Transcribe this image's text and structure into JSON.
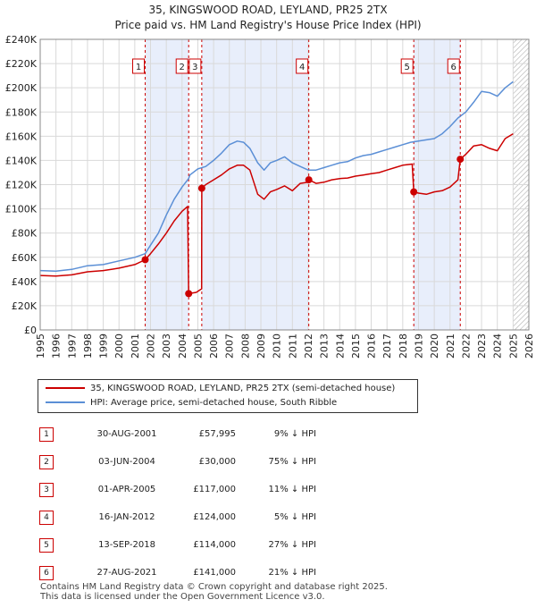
{
  "title_line1": "35, KINGSWOOD ROAD, LEYLAND, PR25 2TX",
  "title_line2": "Price paid vs. HM Land Registry's House Price Index (HPI)",
  "colors": {
    "property": "#cc0000",
    "hpi": "#5b8fd6",
    "shade": "#e8eefb",
    "grid": "#d9d9d9"
  },
  "chart_data": {
    "type": "line",
    "xlim": [
      1995,
      2026
    ],
    "ylim": [
      0,
      240000
    ],
    "y_ticks": [
      0,
      20000,
      40000,
      60000,
      80000,
      100000,
      120000,
      140000,
      160000,
      180000,
      200000,
      220000,
      240000
    ],
    "y_tick_labels": [
      "£0",
      "£20K",
      "£40K",
      "£60K",
      "£80K",
      "£100K",
      "£120K",
      "£140K",
      "£160K",
      "£180K",
      "£200K",
      "£220K",
      "£240K"
    ],
    "x_tick_labels": [
      "1995",
      "1996",
      "1997",
      "1998",
      "1999",
      "2000",
      "2001",
      "2002",
      "2003",
      "2004",
      "2005",
      "2006",
      "2007",
      "2008",
      "2009",
      "2010",
      "2011",
      "2012",
      "2013",
      "2014",
      "2015",
      "2016",
      "2017",
      "2018",
      "2019",
      "2020",
      "2021",
      "2022",
      "2023",
      "2024",
      "2025",
      "2026"
    ],
    "shaded_periods": [
      [
        2001.66,
        2004.42
      ],
      [
        2005.25,
        2012.04
      ],
      [
        2018.7,
        2021.65
      ]
    ],
    "future_hatch_from": 2025.0,
    "series": [
      {
        "name": "HPI: Average price, semi-detached house, South Ribble",
        "x": [
          1995.0,
          1996.0,
          1997.0,
          1998.0,
          1999.0,
          2000.0,
          2001.0,
          2001.66,
          2002.0,
          2002.5,
          2003.0,
          2003.5,
          2004.0,
          2004.42,
          2004.5,
          2005.0,
          2005.5,
          2006.0,
          2006.5,
          2007.0,
          2007.5,
          2007.9,
          2008.3,
          2008.8,
          2009.2,
          2009.6,
          2010.0,
          2010.5,
          2011.0,
          2011.5,
          2012.0,
          2012.5,
          2013.0,
          2013.5,
          2014.0,
          2014.5,
          2015.0,
          2015.5,
          2016.0,
          2016.5,
          2017.0,
          2017.5,
          2018.0,
          2018.5,
          2019.0,
          2019.5,
          2020.0,
          2020.5,
          2021.0,
          2021.5,
          2022.0,
          2022.5,
          2023.0,
          2023.5,
          2024.0,
          2024.5,
          2025.0
        ],
        "values": [
          49000,
          48500,
          50000,
          53000,
          54000,
          57000,
          60000,
          63000,
          70000,
          80000,
          95000,
          108000,
          118000,
          125000,
          128000,
          133000,
          135000,
          140000,
          146000,
          153000,
          156000,
          155000,
          150000,
          138000,
          132000,
          138000,
          140000,
          143000,
          138000,
          135000,
          132000,
          132000,
          134000,
          136000,
          138000,
          139000,
          142000,
          144000,
          145000,
          147000,
          149000,
          151000,
          153000,
          155000,
          156000,
          157000,
          158000,
          162000,
          168000,
          175000,
          180000,
          188000,
          197000,
          196000,
          193000,
          200000,
          205000
        ]
      },
      {
        "name": "35, KINGSWOOD ROAD, LEYLAND, PR25 2TX (semi-detached house)",
        "x": [
          1995.0,
          1996.0,
          1997.0,
          1998.0,
          1999.0,
          2000.0,
          2001.0,
          2001.66,
          2002.0,
          2002.5,
          2003.0,
          2003.5,
          2004.0,
          2004.35,
          2004.42,
          2004.9,
          2005.24,
          2005.25,
          2005.5,
          2006.0,
          2006.5,
          2007.0,
          2007.5,
          2007.9,
          2008.3,
          2008.8,
          2009.2,
          2009.6,
          2010.0,
          2010.5,
          2011.0,
          2011.5,
          2012.0,
          2012.04,
          2012.5,
          2013.0,
          2013.5,
          2014.0,
          2014.5,
          2015.0,
          2015.5,
          2016.0,
          2016.5,
          2017.0,
          2017.5,
          2018.0,
          2018.6,
          2018.7,
          2019.0,
          2019.5,
          2020.0,
          2020.5,
          2021.0,
          2021.5,
          2021.65,
          2022.0,
          2022.5,
          2023.0,
          2023.5,
          2024.0,
          2024.5,
          2025.0
        ],
        "values": [
          45000,
          44500,
          45500,
          48000,
          49000,
          51000,
          54000,
          57995,
          63000,
          71000,
          80000,
          90000,
          98000,
          102000,
          30000,
          31000,
          34000,
          117000,
          120000,
          124000,
          128000,
          133000,
          136000,
          136000,
          132000,
          112000,
          108000,
          114000,
          116000,
          119000,
          115000,
          121000,
          122000,
          124000,
          121000,
          122000,
          124000,
          125000,
          125500,
          127000,
          128000,
          129000,
          130000,
          132000,
          134000,
          136000,
          137000,
          114000,
          113000,
          112000,
          114000,
          115000,
          118000,
          124000,
          141000,
          145000,
          152000,
          153000,
          150000,
          148000,
          158000,
          162000
        ]
      }
    ],
    "sale_markers": [
      {
        "label": "1",
        "x": 2001.66,
        "value": 57995
      },
      {
        "label": "2",
        "x": 2004.42,
        "value": 30000
      },
      {
        "label": "3",
        "x": 2005.25,
        "value": 117000
      },
      {
        "label": "4",
        "x": 2012.04,
        "value": 124000
      },
      {
        "label": "5",
        "x": 2018.7,
        "value": 114000
      },
      {
        "label": "6",
        "x": 2021.65,
        "value": 141000
      }
    ]
  },
  "legend": {
    "property": "35, KINGSWOOD ROAD, LEYLAND, PR25 2TX (semi-detached house)",
    "hpi": "HPI: Average price, semi-detached house, South Ribble"
  },
  "sales": [
    {
      "num": "1",
      "date": "30-AUG-2001",
      "price": "£57,995",
      "delta": "9% ↓ HPI"
    },
    {
      "num": "2",
      "date": "03-JUN-2004",
      "price": "£30,000",
      "delta": "75% ↓ HPI"
    },
    {
      "num": "3",
      "date": "01-APR-2005",
      "price": "£117,000",
      "delta": "11% ↓ HPI"
    },
    {
      "num": "4",
      "date": "16-JAN-2012",
      "price": "£124,000",
      "delta": "5% ↓ HPI"
    },
    {
      "num": "5",
      "date": "13-SEP-2018",
      "price": "£114,000",
      "delta": "27% ↓ HPI"
    },
    {
      "num": "6",
      "date": "27-AUG-2021",
      "price": "£141,000",
      "delta": "21% ↓ HPI"
    }
  ],
  "footer_line1": "Contains HM Land Registry data © Crown copyright and database right 2025.",
  "footer_line2": "This data is licensed under the Open Government Licence v3.0."
}
